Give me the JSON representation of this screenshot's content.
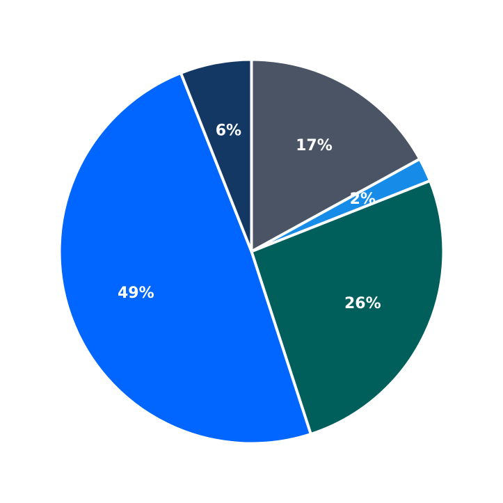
{
  "chart_data": {
    "type": "pie",
    "start": "12 o'clock",
    "direction": "clockwise",
    "slices": [
      {
        "label": "17%",
        "value": 17,
        "color": "#4a5464"
      },
      {
        "label": "2%",
        "value": 2,
        "color": "#168be8"
      },
      {
        "label": "26%",
        "value": 26,
        "color": "#005e5b"
      },
      {
        "label": "49%",
        "value": 49,
        "color": "#0066ff"
      },
      {
        "label": "6%",
        "value": 6,
        "color": "#133864"
      }
    ]
  }
}
